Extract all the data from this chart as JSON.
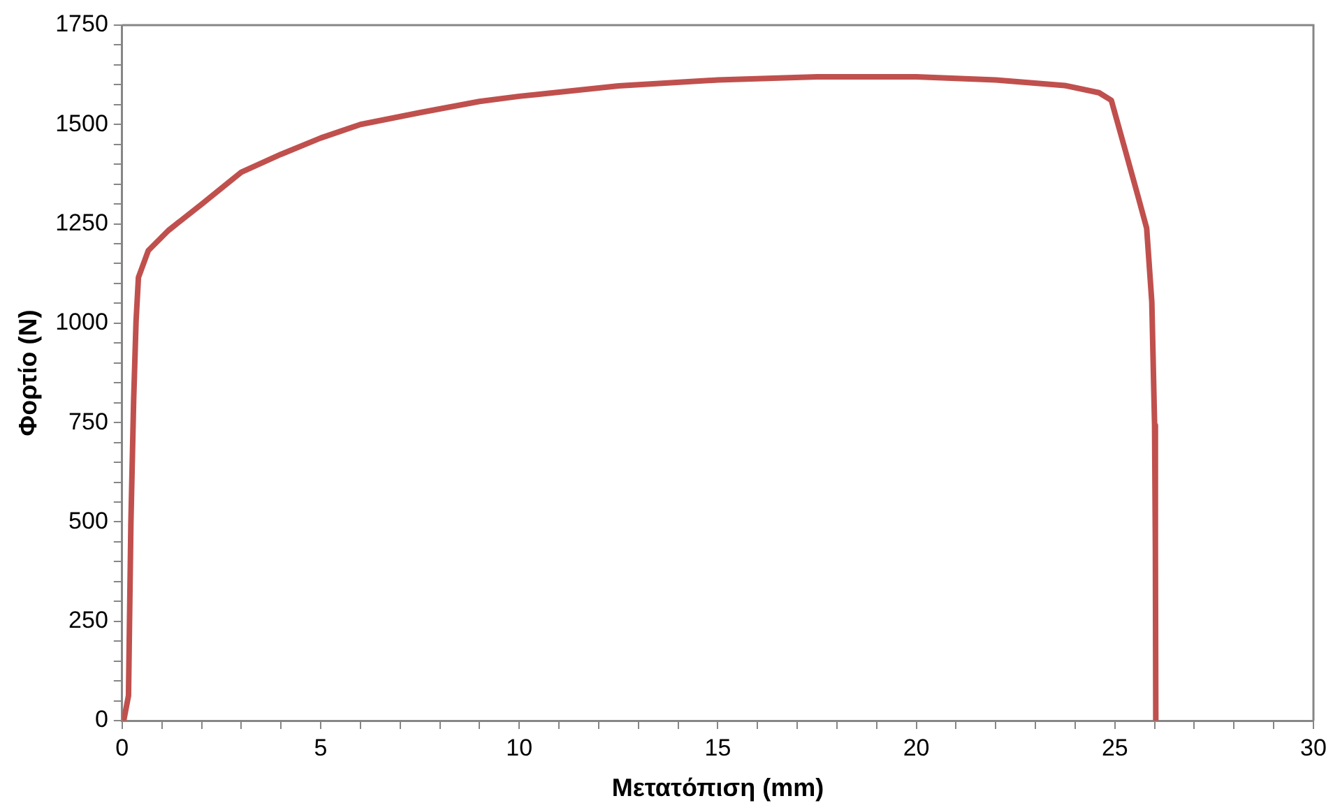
{
  "chart_data": {
    "type": "line",
    "xlabel": "Μετατόπιση (mm)",
    "ylabel": "Φορτίο (N)",
    "xlim": [
      0,
      30
    ],
    "ylim": [
      0,
      1750
    ],
    "xticks": [
      0,
      {
        "value": 1,
        "label": null
      },
      {
        "value": 2,
        "label": null
      },
      {
        "value": 3,
        "label": null
      },
      {
        "value": 4,
        "label": null
      },
      5,
      {
        "value": 6,
        "label": null
      },
      {
        "value": 7,
        "label": null
      },
      {
        "value": 8,
        "label": null
      },
      {
        "value": 9,
        "label": null
      },
      10,
      {
        "value": 11,
        "label": null
      },
      {
        "value": 12,
        "label": null
      },
      {
        "value": 13,
        "label": null
      },
      {
        "value": 14,
        "label": null
      },
      15,
      {
        "value": 16,
        "label": null
      },
      {
        "value": 17,
        "label": null
      },
      {
        "value": 18,
        "label": null
      },
      {
        "value": 19,
        "label": null
      },
      20,
      {
        "value": 21,
        "label": null
      },
      {
        "value": 22,
        "label": null
      },
      {
        "value": 23,
        "label": null
      },
      {
        "value": 24,
        "label": null
      },
      25,
      {
        "value": 26,
        "label": null
      },
      {
        "value": 27,
        "label": null
      },
      {
        "value": 28,
        "label": null
      },
      {
        "value": 29,
        "label": null
      },
      30
    ],
    "yticks": [
      0,
      {
        "value": 50,
        "label": null
      },
      {
        "value": 100,
        "label": null
      },
      {
        "value": 150,
        "label": null
      },
      {
        "value": 200,
        "label": null
      },
      250,
      {
        "value": 300,
        "label": null
      },
      {
        "value": 350,
        "label": null
      },
      {
        "value": 400,
        "label": null
      },
      {
        "value": 450,
        "label": null
      },
      500,
      {
        "value": 550,
        "label": null
      },
      {
        "value": 600,
        "label": null
      },
      {
        "value": 650,
        "label": null
      },
      {
        "value": 700,
        "label": null
      },
      750,
      {
        "value": 800,
        "label": null
      },
      {
        "value": 850,
        "label": null
      },
      {
        "value": 900,
        "label": null
      },
      {
        "value": 950,
        "label": null
      },
      1000,
      {
        "value": 1050,
        "label": null
      },
      {
        "value": 1100,
        "label": null
      },
      {
        "value": 1150,
        "label": null
      },
      {
        "value": 1200,
        "label": null
      },
      1250,
      {
        "value": 1300,
        "label": null
      },
      {
        "value": 1350,
        "label": null
      },
      {
        "value": 1400,
        "label": null
      },
      {
        "value": 1450,
        "label": null
      },
      1500,
      {
        "value": 1550,
        "label": null
      },
      {
        "value": 1600,
        "label": null
      },
      {
        "value": 1650,
        "label": null
      },
      {
        "value": 1700,
        "label": null
      },
      1750
    ],
    "grid": false,
    "legend": false,
    "marker": "none",
    "line_style": "solid",
    "series": [
      {
        "color": "#c0504d",
        "x": [
          0.04,
          0.16,
          0.22,
          0.29,
          0.35,
          0.41,
          0.66,
          1.16,
          2.02,
          3,
          4,
          5,
          6,
          7.5,
          9,
          10,
          12.5,
          15,
          17.5,
          20,
          22,
          23.74,
          24.6,
          24.91,
          25.22,
          25.6,
          25.8,
          25.93,
          26.0,
          26.02,
          26.03
        ],
        "values": [
          0,
          63,
          496,
          807,
          1004,
          1115,
          1183,
          1233,
          1301,
          1380,
          1425,
          1466,
          1500,
          1530,
          1558,
          1571,
          1597,
          1612,
          1620,
          1620,
          1612,
          1598,
          1580,
          1561,
          1450,
          1313,
          1239,
          1053,
          743,
          435,
          0
        ]
      }
    ]
  }
}
